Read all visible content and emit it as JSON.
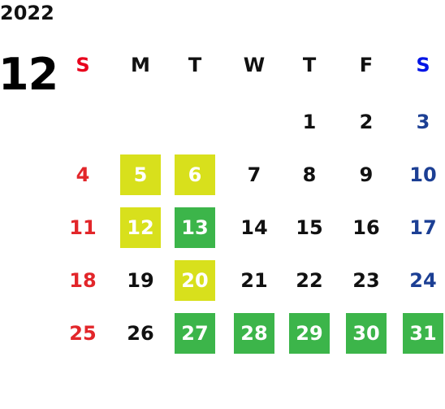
{
  "header": {
    "year": "2022",
    "month": "12"
  },
  "weekdays": [
    {
      "label": "S",
      "color": "#e8001c"
    },
    {
      "label": "M",
      "color": "#111111"
    },
    {
      "label": "T",
      "color": "#111111"
    },
    {
      "label": "W",
      "color": "#111111"
    },
    {
      "label": "T",
      "color": "#111111"
    },
    {
      "label": "F",
      "color": "#111111"
    },
    {
      "label": "S",
      "color": "#0014e6"
    }
  ],
  "colors": {
    "sunday": "#e2262a",
    "saturday": "#1c3f94",
    "weekday": "#111111",
    "highlight_yellow": "#d8e01c",
    "highlight_green": "#3cb54a",
    "highlight_text": "#ffffff"
  },
  "weeks": [
    [
      null,
      null,
      null,
      null,
      {
        "day": "1"
      },
      {
        "day": "2"
      },
      {
        "day": "3"
      }
    ],
    [
      {
        "day": "4"
      },
      {
        "day": "5",
        "highlight": "yellow"
      },
      {
        "day": "6",
        "highlight": "yellow"
      },
      {
        "day": "7"
      },
      {
        "day": "8"
      },
      {
        "day": "9"
      },
      {
        "day": "10"
      }
    ],
    [
      {
        "day": "11"
      },
      {
        "day": "12",
        "highlight": "yellow"
      },
      {
        "day": "13",
        "highlight": "green"
      },
      {
        "day": "14"
      },
      {
        "day": "15"
      },
      {
        "day": "16"
      },
      {
        "day": "17"
      }
    ],
    [
      {
        "day": "18"
      },
      {
        "day": "19"
      },
      {
        "day": "20",
        "highlight": "yellow"
      },
      {
        "day": "21"
      },
      {
        "day": "22"
      },
      {
        "day": "23"
      },
      {
        "day": "24"
      }
    ],
    [
      {
        "day": "25"
      },
      {
        "day": "26"
      },
      {
        "day": "27",
        "highlight": "green"
      },
      {
        "day": "28",
        "highlight": "green"
      },
      {
        "day": "29",
        "highlight": "green"
      },
      {
        "day": "30",
        "highlight": "green"
      },
      {
        "day": "31",
        "highlight": "green"
      }
    ]
  ]
}
